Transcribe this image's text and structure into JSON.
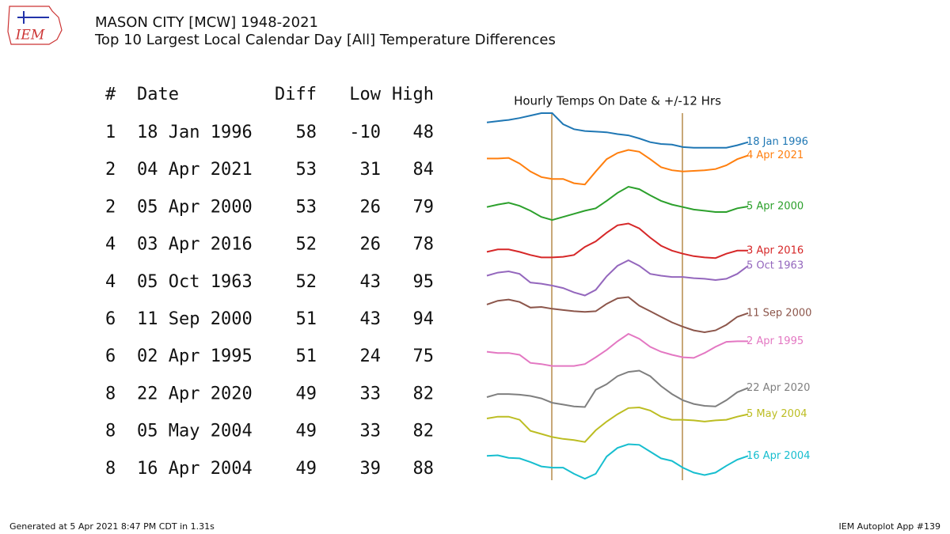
{
  "header": {
    "title": "MASON CITY [MCW] 1948-2021",
    "subtitle": "Top 10 Largest Local Calendar Day [All] Temperature Differences",
    "logo": "IEM"
  },
  "table": {
    "columns": [
      "#",
      "Date",
      "Diff",
      "Low",
      "High"
    ],
    "rows": [
      [
        1,
        "18 Jan 1996",
        58,
        -10,
        48
      ],
      [
        2,
        "04 Apr 2021",
        53,
        31,
        84
      ],
      [
        2,
        "05 Apr 2000",
        53,
        26,
        79
      ],
      [
        4,
        "03 Apr 2016",
        52,
        26,
        78
      ],
      [
        4,
        "05 Oct 1963",
        52,
        43,
        95
      ],
      [
        6,
        "11 Sep 2000",
        51,
        43,
        94
      ],
      [
        6,
        "02 Apr 1995",
        51,
        24,
        75
      ],
      [
        8,
        "22 Apr 2020",
        49,
        33,
        82
      ],
      [
        8,
        "05 May 2004",
        49,
        33,
        82
      ],
      [
        8,
        "16 Apr 2004",
        49,
        39,
        88
      ]
    ]
  },
  "chart_data": {
    "type": "line",
    "title": "Hourly Temps On Date & +/-12 Hrs",
    "series": [
      {
        "name": "18 Jan 1996",
        "color": "#1f77b4",
        "values": [
          33,
          35,
          37,
          40,
          44,
          48,
          48,
          30,
          22,
          19,
          18,
          17,
          14,
          12,
          7,
          1,
          -2,
          -3,
          -7,
          -8,
          -8,
          -8,
          -8,
          -4,
          1
        ]
      },
      {
        "name": "4 Apr 2021",
        "color": "#ff7f0e",
        "values": [
          70,
          70,
          71,
          62,
          49,
          40,
          37,
          37,
          30,
          28,
          49,
          69,
          79,
          84,
          81,
          69,
          56,
          51,
          49,
          50,
          51,
          53,
          59,
          69,
          75
        ]
      },
      {
        "name": "5 Apr 2000",
        "color": "#2ca02c",
        "values": [
          43,
          47,
          50,
          45,
          37,
          27,
          22,
          27,
          32,
          37,
          41,
          53,
          66,
          76,
          72,
          62,
          53,
          47,
          43,
          39,
          37,
          35,
          35,
          41,
          44
        ]
      },
      {
        "name": "3 Apr 2016",
        "color": "#d62728",
        "values": [
          32,
          36,
          36,
          32,
          27,
          23,
          23,
          24,
          27,
          40,
          49,
          63,
          75,
          78,
          70,
          55,
          42,
          34,
          29,
          25,
          23,
          22,
          29,
          34,
          34
        ]
      },
      {
        "name": "5 Oct 1963",
        "color": "#9467bd",
        "values": [
          69,
          74,
          76,
          72,
          58,
          56,
          53,
          49,
          42,
          37,
          46,
          68,
          85,
          94,
          85,
          72,
          69,
          67,
          67,
          65,
          64,
          62,
          64,
          72,
          85
        ]
      },
      {
        "name": "11 Sep 2000",
        "color": "#8c564b",
        "values": [
          80,
          86,
          88,
          84,
          75,
          76,
          73,
          71,
          69,
          68,
          69,
          81,
          90,
          92,
          78,
          69,
          60,
          51,
          44,
          38,
          35,
          38,
          47,
          60,
          66
        ]
      },
      {
        "name": "2 Apr 1995",
        "color": "#e377c2",
        "values": [
          40,
          38,
          38,
          35,
          22,
          20,
          17,
          17,
          17,
          20,
          31,
          43,
          57,
          69,
          61,
          48,
          40,
          35,
          31,
          30,
          38,
          48,
          56,
          57,
          57
        ]
      },
      {
        "name": "22 Apr 2020",
        "color": "#7f7f7f",
        "values": [
          38,
          43,
          43,
          42,
          40,
          36,
          29,
          26,
          23,
          22,
          50,
          59,
          72,
          79,
          81,
          72,
          56,
          43,
          33,
          27,
          24,
          23,
          33,
          46,
          53
        ]
      },
      {
        "name": "5 May 2004",
        "color": "#bcbd22",
        "values": [
          61,
          64,
          64,
          59,
          41,
          36,
          31,
          28,
          26,
          23,
          42,
          56,
          68,
          78,
          79,
          74,
          64,
          59,
          59,
          58,
          56,
          58,
          59,
          64,
          68
        ]
      },
      {
        "name": "16 Apr 2004",
        "color": "#17becf",
        "values": [
          66,
          67,
          63,
          62,
          56,
          49,
          47,
          47,
          37,
          29,
          37,
          65,
          79,
          85,
          84,
          73,
          62,
          58,
          47,
          39,
          35,
          39,
          50,
          60,
          66
        ]
      }
    ]
  },
  "footer": {
    "left": "Generated at 5 Apr 2021 8:47 PM CDT in 1.31s",
    "right": "IEM Autoplot App #139"
  }
}
